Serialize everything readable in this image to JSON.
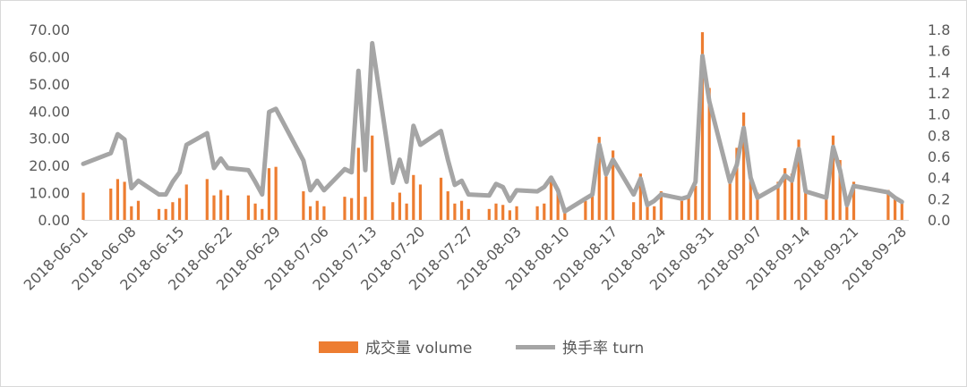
{
  "chart_data": {
    "type": "bar+line",
    "title": "",
    "xlabel": "",
    "ylabel_left": "",
    "ylabel_right": "",
    "ylim_left": [
      0,
      70
    ],
    "yticks_left": [
      "0.00",
      "10.00",
      "20.00",
      "30.00",
      "40.00",
      "50.00",
      "60.00",
      "70.00"
    ],
    "ylim_right": [
      0,
      1.8
    ],
    "yticks_right": [
      "0.0",
      "0.2",
      "0.4",
      "0.6",
      "0.8",
      "1.0",
      "1.2",
      "1.4",
      "1.6",
      "1.8"
    ],
    "x_range": [
      "2018-06-01",
      "2018-09-29"
    ],
    "x_tick_labels": [
      "2018-06-01",
      "2018-06-08",
      "2018-06-15",
      "2018-06-22",
      "2018-06-29",
      "2018-07-06",
      "2018-07-13",
      "2018-07-20",
      "2018-07-27",
      "2018-08-03",
      "2018-08-10",
      "2018-08-17",
      "2018-08-24",
      "2018-08-31",
      "2018-09-07",
      "2018-09-14",
      "2018-09-21",
      "2018-09-28"
    ],
    "legend_position": "bottom",
    "gridlines": false,
    "series": [
      {
        "name": "成交量 volume",
        "kind": "bar",
        "axis": "left",
        "color": "#ed7d31",
        "points": [
          [
            "2018-06-01",
            10.0
          ],
          [
            "2018-06-05",
            11.5
          ],
          [
            "2018-06-06",
            15.0
          ],
          [
            "2018-06-07",
            14.0
          ],
          [
            "2018-06-08",
            5.0
          ],
          [
            "2018-06-09",
            7.0
          ],
          [
            "2018-06-12",
            4.0
          ],
          [
            "2018-06-13",
            4.0
          ],
          [
            "2018-06-14",
            6.5
          ],
          [
            "2018-06-15",
            8.0
          ],
          [
            "2018-06-16",
            13.0
          ],
          [
            "2018-06-19",
            15.0
          ],
          [
            "2018-06-20",
            9.0
          ],
          [
            "2018-06-21",
            11.0
          ],
          [
            "2018-06-22",
            9.0
          ],
          [
            "2018-06-25",
            9.0
          ],
          [
            "2018-06-26",
            6.0
          ],
          [
            "2018-06-27",
            4.0
          ],
          [
            "2018-06-28",
            19.0
          ],
          [
            "2018-06-29",
            19.5
          ],
          [
            "2018-07-03",
            10.5
          ],
          [
            "2018-07-04",
            5.0
          ],
          [
            "2018-07-05",
            7.0
          ],
          [
            "2018-07-06",
            5.0
          ],
          [
            "2018-07-09",
            8.5
          ],
          [
            "2018-07-10",
            8.0
          ],
          [
            "2018-07-11",
            26.5
          ],
          [
            "2018-07-12",
            8.5
          ],
          [
            "2018-07-13",
            31.0
          ],
          [
            "2018-07-16",
            6.5
          ],
          [
            "2018-07-17",
            10.0
          ],
          [
            "2018-07-18",
            6.0
          ],
          [
            "2018-07-19",
            16.5
          ],
          [
            "2018-07-20",
            13.0
          ],
          [
            "2018-07-23",
            15.5
          ],
          [
            "2018-07-24",
            10.5
          ],
          [
            "2018-07-25",
            6.0
          ],
          [
            "2018-07-26",
            7.0
          ],
          [
            "2018-07-27",
            4.0
          ],
          [
            "2018-07-30",
            4.0
          ],
          [
            "2018-07-31",
            6.0
          ],
          [
            "2018-08-01",
            5.5
          ],
          [
            "2018-08-02",
            3.5
          ],
          [
            "2018-08-03",
            5.0
          ],
          [
            "2018-08-06",
            5.0
          ],
          [
            "2018-08-07",
            6.0
          ],
          [
            "2018-08-08",
            15.5
          ],
          [
            "2018-08-09",
            10.0
          ],
          [
            "2018-08-10",
            3.0
          ],
          [
            "2018-08-13",
            7.0
          ],
          [
            "2018-08-14",
            9.0
          ],
          [
            "2018-08-15",
            30.5
          ],
          [
            "2018-08-16",
            16.0
          ],
          [
            "2018-08-17",
            25.5
          ],
          [
            "2018-08-20",
            6.5
          ],
          [
            "2018-08-21",
            17.0
          ],
          [
            "2018-08-22",
            7.0
          ],
          [
            "2018-08-23",
            5.0
          ],
          [
            "2018-08-24",
            10.5
          ],
          [
            "2018-08-27",
            7.0
          ],
          [
            "2018-08-28",
            8.0
          ],
          [
            "2018-08-29",
            12.5
          ],
          [
            "2018-08-30",
            69.0
          ],
          [
            "2018-08-31",
            48.5
          ],
          [
            "2018-09-03",
            14.5
          ],
          [
            "2018-09-04",
            26.5
          ],
          [
            "2018-09-05",
            39.5
          ],
          [
            "2018-09-06",
            17.0
          ],
          [
            "2018-09-07",
            10.0
          ],
          [
            "2018-09-10",
            14.0
          ],
          [
            "2018-09-11",
            19.0
          ],
          [
            "2018-09-12",
            17.0
          ],
          [
            "2018-09-13",
            29.5
          ],
          [
            "2018-09-14",
            11.0
          ],
          [
            "2018-09-17",
            10.0
          ],
          [
            "2018-09-18",
            31.0
          ],
          [
            "2018-09-19",
            22.0
          ],
          [
            "2018-09-20",
            7.0
          ],
          [
            "2018-09-21",
            14.0
          ],
          [
            "2018-09-26",
            11.0
          ],
          [
            "2018-09-27",
            8.0
          ],
          [
            "2018-09-28",
            6.5
          ]
        ]
      },
      {
        "name": "换手率 turn",
        "kind": "line",
        "axis": "right",
        "color": "#a5a5a5",
        "points": [
          [
            "2018-06-01",
            0.53
          ],
          [
            "2018-06-05",
            0.63
          ],
          [
            "2018-06-06",
            0.81
          ],
          [
            "2018-06-07",
            0.76
          ],
          [
            "2018-06-08",
            0.3
          ],
          [
            "2018-06-09",
            0.37
          ],
          [
            "2018-06-12",
            0.24
          ],
          [
            "2018-06-13",
            0.24
          ],
          [
            "2018-06-14",
            0.36
          ],
          [
            "2018-06-15",
            0.45
          ],
          [
            "2018-06-16",
            0.71
          ],
          [
            "2018-06-19",
            0.82
          ],
          [
            "2018-06-20",
            0.49
          ],
          [
            "2018-06-21",
            0.58
          ],
          [
            "2018-06-22",
            0.49
          ],
          [
            "2018-06-25",
            0.47
          ],
          [
            "2018-06-26",
            0.36
          ],
          [
            "2018-06-27",
            0.24
          ],
          [
            "2018-06-28",
            1.02
          ],
          [
            "2018-06-29",
            1.05
          ],
          [
            "2018-07-03",
            0.56
          ],
          [
            "2018-07-04",
            0.28
          ],
          [
            "2018-07-05",
            0.37
          ],
          [
            "2018-07-06",
            0.28
          ],
          [
            "2018-07-09",
            0.48
          ],
          [
            "2018-07-10",
            0.45
          ],
          [
            "2018-07-11",
            1.41
          ],
          [
            "2018-07-12",
            0.47
          ],
          [
            "2018-07-13",
            1.67
          ],
          [
            "2018-07-16",
            0.35
          ],
          [
            "2018-07-17",
            0.57
          ],
          [
            "2018-07-18",
            0.36
          ],
          [
            "2018-07-19",
            0.89
          ],
          [
            "2018-07-20",
            0.71
          ],
          [
            "2018-07-23",
            0.84
          ],
          [
            "2018-07-24",
            0.57
          ],
          [
            "2018-07-25",
            0.33
          ],
          [
            "2018-07-26",
            0.37
          ],
          [
            "2018-07-27",
            0.24
          ],
          [
            "2018-07-30",
            0.23
          ],
          [
            "2018-07-31",
            0.34
          ],
          [
            "2018-08-01",
            0.31
          ],
          [
            "2018-08-02",
            0.18
          ],
          [
            "2018-08-03",
            0.28
          ],
          [
            "2018-08-06",
            0.27
          ],
          [
            "2018-08-07",
            0.31
          ],
          [
            "2018-08-08",
            0.4
          ],
          [
            "2018-08-09",
            0.28
          ],
          [
            "2018-08-10",
            0.08
          ],
          [
            "2018-08-13",
            0.2
          ],
          [
            "2018-08-14",
            0.24
          ],
          [
            "2018-08-15",
            0.71
          ],
          [
            "2018-08-16",
            0.43
          ],
          [
            "2018-08-17",
            0.57
          ],
          [
            "2018-08-20",
            0.24
          ],
          [
            "2018-08-21",
            0.39
          ],
          [
            "2018-08-22",
            0.14
          ],
          [
            "2018-08-23",
            0.18
          ],
          [
            "2018-08-24",
            0.24
          ],
          [
            "2018-08-27",
            0.2
          ],
          [
            "2018-08-28",
            0.22
          ],
          [
            "2018-08-29",
            0.36
          ],
          [
            "2018-08-30",
            1.55
          ],
          [
            "2018-08-31",
            1.12
          ],
          [
            "2018-09-03",
            0.36
          ],
          [
            "2018-09-04",
            0.52
          ],
          [
            "2018-09-05",
            0.87
          ],
          [
            "2018-09-06",
            0.4
          ],
          [
            "2018-09-07",
            0.21
          ],
          [
            "2018-09-10",
            0.32
          ],
          [
            "2018-09-11",
            0.42
          ],
          [
            "2018-09-12",
            0.37
          ],
          [
            "2018-09-13",
            0.67
          ],
          [
            "2018-09-14",
            0.27
          ],
          [
            "2018-09-17",
            0.21
          ],
          [
            "2018-09-18",
            0.69
          ],
          [
            "2018-09-19",
            0.47
          ],
          [
            "2018-09-20",
            0.14
          ],
          [
            "2018-09-21",
            0.32
          ],
          [
            "2018-09-26",
            0.26
          ],
          [
            "2018-09-27",
            0.21
          ],
          [
            "2018-09-28",
            0.17
          ]
        ]
      }
    ]
  }
}
